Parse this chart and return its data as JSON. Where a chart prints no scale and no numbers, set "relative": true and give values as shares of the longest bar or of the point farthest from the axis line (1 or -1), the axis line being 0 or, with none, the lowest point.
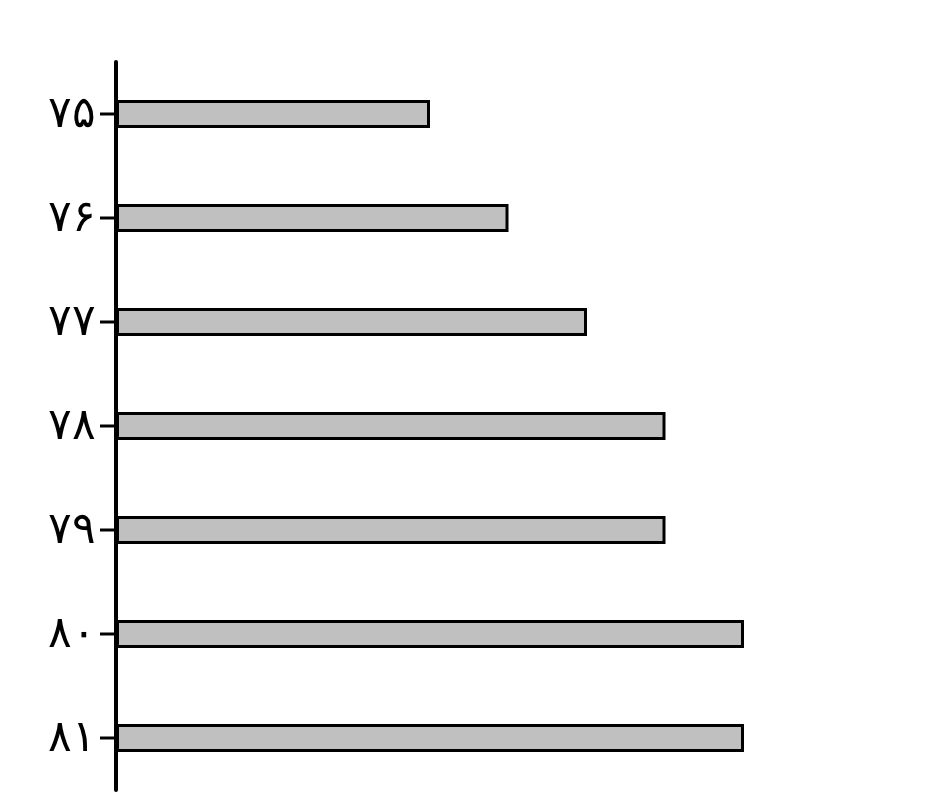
{
  "chart_data": {
    "type": "bar",
    "orientation": "horizontal",
    "relative": true,
    "categories": [
      "۷۵",
      "۷۶",
      "۷۷",
      "۷۸",
      "۷۹",
      "۸۰",
      "۸۱"
    ],
    "values": [
      0.5,
      0.625,
      0.75,
      0.875,
      0.875,
      1,
      1
    ],
    "color": "#c0c0c0"
  }
}
